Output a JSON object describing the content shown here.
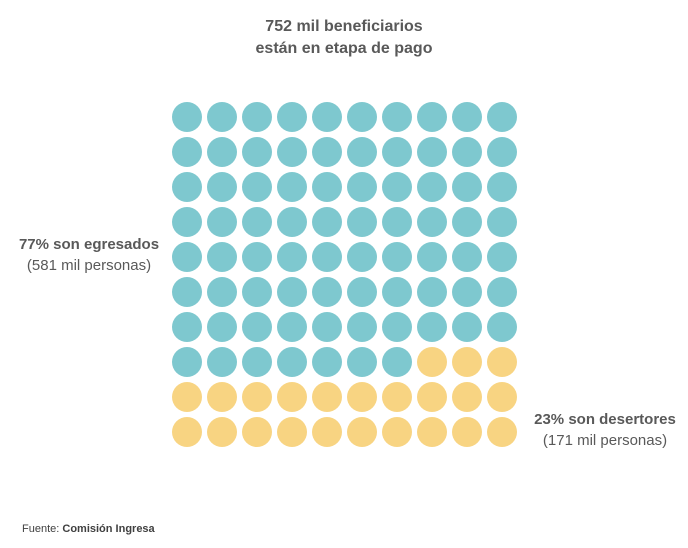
{
  "title": {
    "line1": "752 mil beneficiarios",
    "line2": "están en etapa de pago"
  },
  "labels": {
    "egresados": {
      "headline": "77% son egresados",
      "detail": "(581 mil personas)"
    },
    "desertores": {
      "headline": "23% son desertores",
      "detail": "(171 mil personas)"
    }
  },
  "source": {
    "prefix": "Fuente:",
    "name": "Comisión Ingresa"
  },
  "colors": {
    "egresados": "#7ec8cf",
    "desertores": "#f8d482"
  },
  "chart_data": {
    "type": "waffle",
    "title": "752 mil beneficiarios están en etapa de pago",
    "rows": 10,
    "cols": 10,
    "series": [
      {
        "name": "77% son egresados",
        "percent": 77,
        "value_thousands": 581,
        "color": "#7ec8cf"
      },
      {
        "name": "23% son desertores",
        "percent": 23,
        "value_thousands": 171,
        "color": "#f8d482"
      }
    ]
  }
}
